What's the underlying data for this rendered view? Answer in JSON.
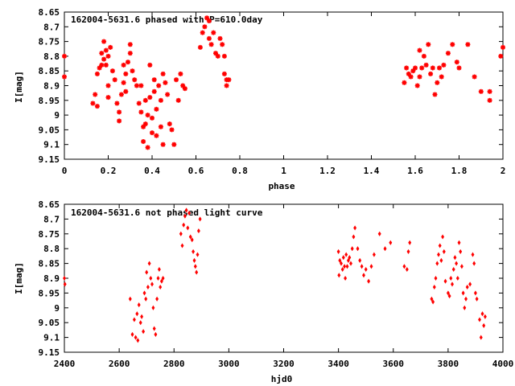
{
  "chart_data": [
    {
      "type": "scatter",
      "title": "162004-5631.6 phased with P=610.0day",
      "xlabel": "phase",
      "ylabel": "I[mag]",
      "xlim": [
        0,
        2
      ],
      "ylim": [
        9.15,
        8.65
      ],
      "y_inverted": true,
      "grid": false,
      "marker_color": "#ff0000",
      "marker": "star",
      "xticks": [
        "0",
        "0.2",
        "0.4",
        "0.6",
        "0.8",
        "1",
        "1.2",
        "1.4",
        "1.6",
        "1.8",
        "2"
      ],
      "yticks": [
        "8.65",
        "8.7",
        "8.75",
        "8.8",
        "8.85",
        "8.9",
        "8.95",
        "9",
        "9.05",
        "9.1",
        "9.15"
      ],
      "x": [
        0.0,
        0.0,
        0.13,
        0.14,
        0.15,
        0.15,
        0.16,
        0.17,
        0.17,
        0.18,
        0.18,
        0.19,
        0.19,
        0.2,
        0.2,
        0.2,
        0.21,
        0.22,
        0.23,
        0.24,
        0.25,
        0.25,
        0.26,
        0.27,
        0.27,
        0.28,
        0.28,
        0.29,
        0.3,
        0.3,
        0.31,
        0.32,
        0.33,
        0.34,
        0.35,
        0.35,
        0.36,
        0.36,
        0.37,
        0.37,
        0.38,
        0.38,
        0.39,
        0.39,
        0.4,
        0.4,
        0.41,
        0.41,
        0.42,
        0.42,
        0.43,
        0.44,
        0.44,
        0.45,
        0.45,
        0.46,
        0.47,
        0.48,
        0.49,
        0.5,
        0.51,
        0.52,
        0.53,
        0.54,
        0.55,
        0.62,
        0.63,
        0.64,
        0.65,
        0.66,
        0.66,
        0.67,
        0.68,
        0.69,
        0.7,
        0.71,
        0.72,
        0.73,
        0.73,
        0.74,
        0.74,
        0.75,
        1.55,
        1.56,
        1.57,
        1.58,
        1.59,
        1.6,
        1.61,
        1.62,
        1.62,
        1.63,
        1.64,
        1.65,
        1.66,
        1.67,
        1.68,
        1.69,
        1.7,
        1.71,
        1.72,
        1.73,
        1.75,
        1.77,
        1.79,
        1.8,
        1.84,
        1.87,
        1.9,
        1.94,
        1.94,
        1.99,
        2.0
      ],
      "y": [
        8.8,
        8.87,
        8.96,
        8.93,
        8.86,
        8.97,
        8.84,
        8.79,
        8.83,
        8.81,
        8.75,
        8.78,
        8.83,
        8.8,
        8.9,
        8.94,
        8.77,
        8.85,
        8.88,
        8.96,
        8.99,
        9.02,
        8.93,
        8.89,
        8.83,
        8.86,
        8.92,
        8.82,
        8.79,
        8.76,
        8.85,
        8.88,
        8.9,
        8.96,
        8.99,
        8.9,
        9.04,
        9.09,
        8.95,
        9.03,
        9.11,
        9.0,
        8.83,
        8.94,
        9.01,
        9.06,
        8.88,
        8.92,
        8.98,
        9.07,
        8.9,
        8.95,
        9.04,
        8.86,
        9.1,
        8.89,
        8.93,
        9.03,
        9.05,
        9.1,
        8.88,
        8.95,
        8.86,
        8.9,
        8.91,
        8.77,
        8.72,
        8.7,
        8.67,
        8.74,
        8.68,
        8.76,
        8.72,
        8.79,
        8.8,
        8.74,
        8.76,
        8.8,
        8.86,
        8.88,
        8.9,
        8.88,
        8.89,
        8.84,
        8.86,
        8.87,
        8.85,
        8.84,
        8.9,
        8.87,
        8.78,
        8.84,
        8.8,
        8.83,
        8.76,
        8.86,
        8.84,
        8.93,
        8.89,
        8.84,
        8.87,
        8.83,
        8.79,
        8.76,
        8.82,
        8.84,
        8.76,
        8.87,
        8.92,
        8.95,
        8.92,
        8.8,
        8.77
      ]
    },
    {
      "type": "scatter",
      "title": "162004-5631.6 not phased light curve",
      "xlabel": "hjd0",
      "ylabel": "I[mag]",
      "xlim": [
        2400,
        4000
      ],
      "ylim": [
        9.15,
        8.65
      ],
      "y_inverted": true,
      "grid": false,
      "marker_color": "#ff0000",
      "marker": "diamond",
      "xticks": [
        "2400",
        "2600",
        "2800",
        "3000",
        "3200",
        "3400",
        "3600",
        "3800",
        "4000"
      ],
      "yticks": [
        "8.65",
        "8.7",
        "8.75",
        "8.8",
        "8.85",
        "8.9",
        "8.95",
        "9",
        "9.05",
        "9.1",
        "9.15"
      ],
      "x": [
        2400,
        2402,
        2640,
        2648,
        2655,
        2660,
        2665,
        2668,
        2672,
        2678,
        2682,
        2688,
        2692,
        2697,
        2700,
        2705,
        2710,
        2715,
        2720,
        2724,
        2728,
        2733,
        2738,
        2742,
        2746,
        2750,
        2755,
        2760,
        2825,
        2830,
        2835,
        2840,
        2845,
        2850,
        2855,
        2860,
        2866,
        2870,
        2874,
        2878,
        2882,
        2886,
        2890,
        2895,
        3400,
        3402,
        3405,
        3410,
        3415,
        3418,
        3422,
        3425,
        3428,
        3432,
        3436,
        3440,
        3445,
        3450,
        3455,
        3460,
        3470,
        3478,
        3485,
        3492,
        3500,
        3510,
        3520,
        3530,
        3550,
        3570,
        3590,
        3640,
        3650,
        3655,
        3660,
        3740,
        3745,
        3750,
        3755,
        3760,
        3765,
        3770,
        3775,
        3780,
        3785,
        3790,
        3800,
        3805,
        3810,
        3815,
        3820,
        3825,
        3830,
        3835,
        3840,
        3845,
        3850,
        3855,
        3860,
        3865,
        3870,
        3880,
        3890,
        3895,
        3900,
        3905,
        3915,
        3920,
        3925,
        3930,
        3935
      ],
      "y": [
        8.9,
        8.92,
        8.97,
        9.09,
        9.04,
        9.1,
        9.02,
        9.11,
        8.99,
        9.05,
        9.03,
        9.08,
        8.95,
        8.97,
        8.88,
        8.93,
        8.85,
        8.9,
        8.92,
        9.0,
        9.07,
        9.09,
        8.97,
        8.9,
        8.87,
        8.93,
        8.91,
        8.9,
        8.75,
        8.79,
        8.72,
        8.69,
        8.67,
        8.73,
        8.68,
        8.76,
        8.77,
        8.81,
        8.84,
        8.86,
        8.88,
        8.82,
        8.74,
        8.7,
        8.81,
        8.89,
        8.84,
        8.85,
        8.87,
        8.83,
        8.86,
        8.9,
        8.82,
        8.86,
        8.84,
        8.83,
        8.85,
        8.8,
        8.76,
        8.73,
        8.8,
        8.84,
        8.86,
        8.89,
        8.87,
        8.91,
        8.86,
        8.82,
        8.75,
        8.8,
        8.78,
        8.86,
        8.87,
        8.81,
        8.78,
        8.97,
        8.98,
        8.93,
        8.9,
        8.85,
        8.82,
        8.79,
        8.84,
        8.76,
        8.81,
        8.91,
        8.95,
        8.96,
        8.9,
        8.92,
        8.87,
        8.83,
        8.85,
        8.9,
        8.78,
        8.81,
        8.86,
        8.95,
        9.0,
        8.97,
        8.93,
        8.92,
        8.82,
        8.85,
        8.95,
        8.97,
        9.04,
        9.1,
        9.02,
        9.06,
        9.03
      ]
    }
  ]
}
